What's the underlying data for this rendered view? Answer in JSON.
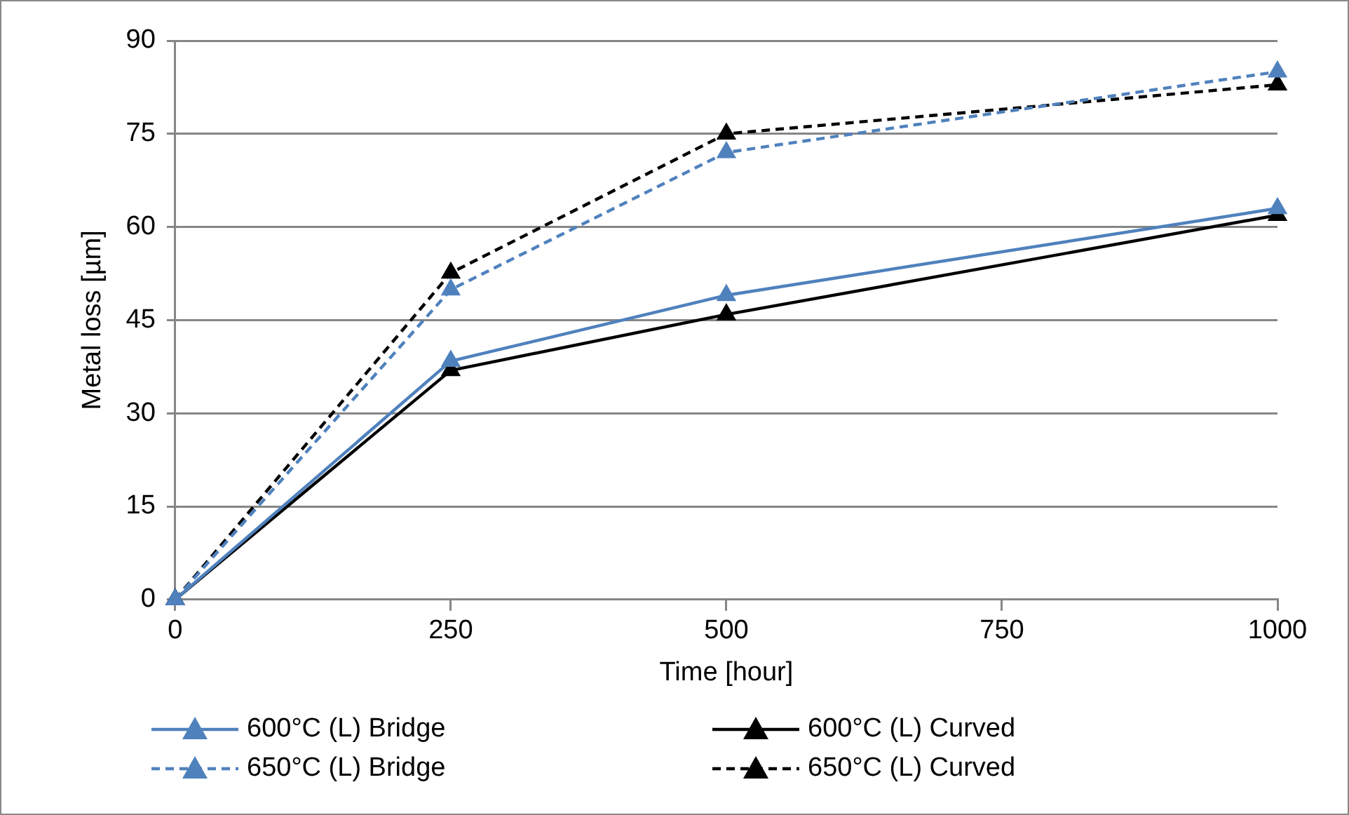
{
  "chart_data": {
    "type": "line",
    "xlabel": "Time [hour]",
    "ylabel": "Metal loss [µm]",
    "x": [
      0,
      250,
      500,
      1000
    ],
    "xlim": [
      0,
      1000
    ],
    "xticks": [
      0,
      250,
      500,
      750,
      1000
    ],
    "ylim": [
      0,
      90
    ],
    "yticks": [
      0,
      15,
      30,
      45,
      60,
      75,
      90
    ],
    "grid": "y",
    "legend": "bottom",
    "marker": "triangle",
    "series": [
      {
        "name": "600°C (L) Bridge",
        "color": "#4f81bd",
        "line_style": "solid",
        "values": [
          0,
          38.4,
          49,
          63
        ]
      },
      {
        "name": "600°C (L) Curved",
        "color": "#000000",
        "line_style": "solid",
        "values": [
          0,
          36.9,
          45.9,
          61.9
        ]
      },
      {
        "name": "650°C (L) Bridge",
        "color": "#4f81bd",
        "line_style": "dashed",
        "values": [
          0,
          49.9,
          72,
          85
        ]
      },
      {
        "name": "650°C (L) Curved",
        "color": "#000000",
        "line_style": "dashed",
        "values": [
          0,
          52.6,
          75,
          82.9
        ]
      }
    ]
  }
}
